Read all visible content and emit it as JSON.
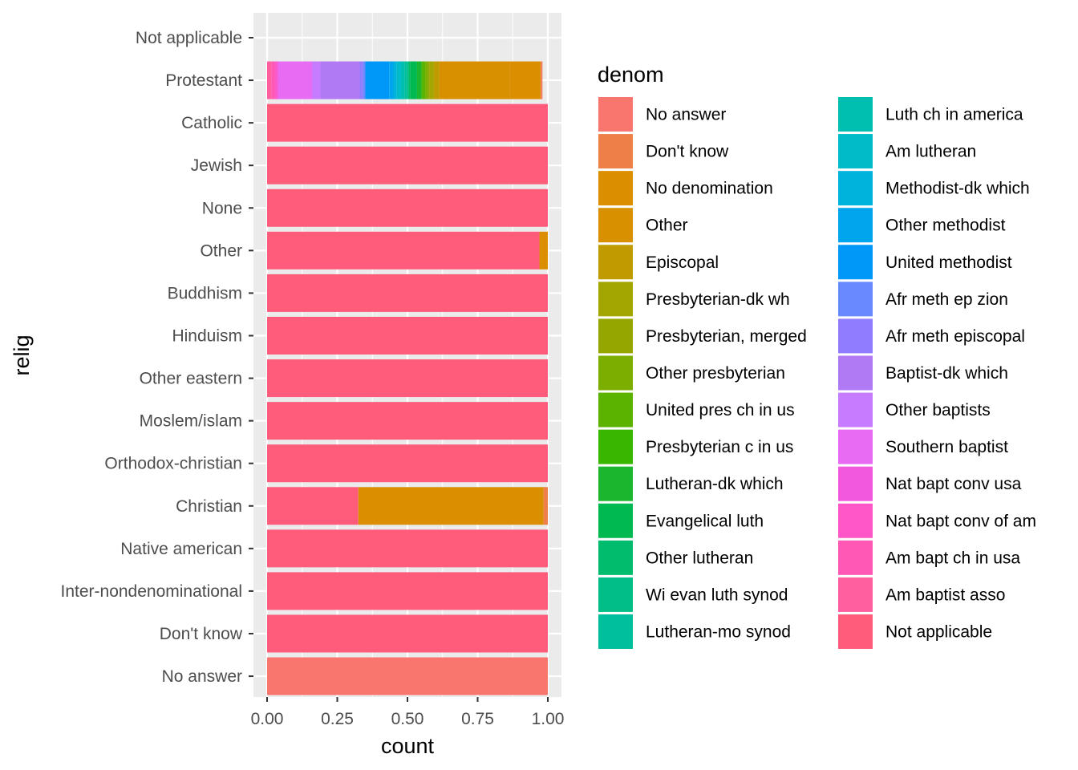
{
  "chart_data": {
    "type": "bar",
    "orientation": "horizontal",
    "stacked": "fill",
    "xlabel": "count",
    "ylabel": "relig",
    "xlim": [
      0,
      1
    ],
    "x_ticks": [
      "0.00",
      "0.25",
      "0.50",
      "0.75",
      "1.00"
    ],
    "grid": true,
    "legend_position": "right",
    "legend_title": "denom",
    "categories": [
      "Not applicable",
      "Protestant",
      "Catholic",
      "Jewish",
      "None",
      "Other",
      "Buddhism",
      "Hinduism",
      "Other eastern",
      "Moslem/islam",
      "Orthodox-christian",
      "Christian",
      "Native american",
      "Inter-nondenominational",
      "Don't know",
      "No answer"
    ],
    "legend": [
      {
        "name": "No answer",
        "color": "#F8766D"
      },
      {
        "name": "Don't know",
        "color": "#EF7F49"
      },
      {
        "name": "No denomination",
        "color": "#DB8E00"
      },
      {
        "name": "Other",
        "color": "#D89000"
      },
      {
        "name": "Episcopal",
        "color": "#C09B00"
      },
      {
        "name": "Presbyterian-dk wh",
        "color": "#A3A500"
      },
      {
        "name": "Presbyterian, merged",
        "color": "#96A600"
      },
      {
        "name": "Other presbyterian",
        "color": "#7CAE00"
      },
      {
        "name": "United pres ch in us",
        "color": "#5BB300"
      },
      {
        "name": "Presbyterian c in us",
        "color": "#39B600"
      },
      {
        "name": "Lutheran-dk which",
        "color": "#1CB52E"
      },
      {
        "name": "Evangelical luth",
        "color": "#00B950"
      },
      {
        "name": "Other lutheran",
        "color": "#00BC6C"
      },
      {
        "name": "Wi evan luth synod",
        "color": "#00BE85"
      },
      {
        "name": "Lutheran-mo synod",
        "color": "#00BF9C"
      },
      {
        "name": "Luth ch in america",
        "color": "#00BFB1"
      },
      {
        "name": "Am lutheran",
        "color": "#00BCC8"
      },
      {
        "name": "Methodist-dk which",
        "color": "#00B3DD"
      },
      {
        "name": "Other methodist",
        "color": "#00A5EE"
      },
      {
        "name": "United methodist",
        "color": "#0098F8"
      },
      {
        "name": "Afr meth ep zion",
        "color": "#6889FF"
      },
      {
        "name": "Afr meth episcopal",
        "color": "#8F7CFF"
      },
      {
        "name": "Baptist-dk which",
        "color": "#B07AF5"
      },
      {
        "name": "Other baptists",
        "color": "#C77CFF"
      },
      {
        "name": "Southern baptist",
        "color": "#E76BF3"
      },
      {
        "name": "Nat bapt conv usa",
        "color": "#F258DB"
      },
      {
        "name": "Nat bapt conv of am",
        "color": "#FF56C8"
      },
      {
        "name": "Am bapt ch in usa",
        "color": "#FF59B5"
      },
      {
        "name": "Am baptist asso",
        "color": "#FF5E9F"
      },
      {
        "name": "Not applicable",
        "color": "#FF5C7C"
      }
    ],
    "bars": [
      {
        "category": "Not applicable",
        "segments": []
      },
      {
        "category": "Protestant",
        "segments": [
          {
            "denom": "Not applicable",
            "value": 0.0
          },
          {
            "denom": "Am baptist asso",
            "value": 0.015
          },
          {
            "denom": "Am bapt ch in usa",
            "value": 0.012
          },
          {
            "denom": "Nat bapt conv of am",
            "value": 0.008
          },
          {
            "denom": "Nat bapt conv usa",
            "value": 0.005
          },
          {
            "denom": "Southern baptist",
            "value": 0.12
          },
          {
            "denom": "Other baptists",
            "value": 0.03
          },
          {
            "denom": "Baptist-dk which",
            "value": 0.14
          },
          {
            "denom": "Afr meth episcopal",
            "value": 0.012
          },
          {
            "denom": "Afr meth ep zion",
            "value": 0.008
          },
          {
            "denom": "United methodist",
            "value": 0.085
          },
          {
            "denom": "Other methodist",
            "value": 0.015
          },
          {
            "denom": "Methodist-dk which",
            "value": 0.012
          },
          {
            "denom": "Am lutheran",
            "value": 0.015
          },
          {
            "denom": "Luth ch in america",
            "value": 0.012
          },
          {
            "denom": "Lutheran-mo synod",
            "value": 0.01
          },
          {
            "denom": "Wi evan luth synod",
            "value": 0.005
          },
          {
            "denom": "Other lutheran",
            "value": 0.005
          },
          {
            "denom": "Evangelical luth",
            "value": 0.025
          },
          {
            "denom": "Lutheran-dk which",
            "value": 0.015
          },
          {
            "denom": "Presbyterian c in us",
            "value": 0.005
          },
          {
            "denom": "United pres ch in us",
            "value": 0.01
          },
          {
            "denom": "Other presbyterian",
            "value": 0.01
          },
          {
            "denom": "Presbyterian, merged",
            "value": 0.005
          },
          {
            "denom": "Presbyterian-dk wh",
            "value": 0.015
          },
          {
            "denom": "Episcopal",
            "value": 0.02
          },
          {
            "denom": "Other",
            "value": 0.25
          },
          {
            "denom": "No denomination",
            "value": 0.11
          },
          {
            "denom": "Don't know",
            "value": 0.005
          },
          {
            "denom": "No answer",
            "value": 0.002
          }
        ]
      },
      {
        "category": "Catholic",
        "segments": [
          {
            "denom": "Not applicable",
            "value": 1.0
          }
        ]
      },
      {
        "category": "Jewish",
        "segments": [
          {
            "denom": "Not applicable",
            "value": 1.0
          }
        ]
      },
      {
        "category": "None",
        "segments": [
          {
            "denom": "Not applicable",
            "value": 1.0
          }
        ]
      },
      {
        "category": "Other",
        "segments": [
          {
            "denom": "Not applicable",
            "value": 0.97
          },
          {
            "denom": "No denomination",
            "value": 0.03
          }
        ]
      },
      {
        "category": "Buddhism",
        "segments": [
          {
            "denom": "Not applicable",
            "value": 1.0
          }
        ]
      },
      {
        "category": "Hinduism",
        "segments": [
          {
            "denom": "Not applicable",
            "value": 1.0
          }
        ]
      },
      {
        "category": "Other eastern",
        "segments": [
          {
            "denom": "Not applicable",
            "value": 1.0
          }
        ]
      },
      {
        "category": "Moslem/islam",
        "segments": [
          {
            "denom": "Not applicable",
            "value": 1.0
          }
        ]
      },
      {
        "category": "Orthodox-christian",
        "segments": [
          {
            "denom": "Not applicable",
            "value": 1.0
          }
        ]
      },
      {
        "category": "Christian",
        "segments": [
          {
            "denom": "Not applicable",
            "value": 0.325
          },
          {
            "denom": "Other",
            "value": 0.0
          },
          {
            "denom": "No denomination",
            "value": 0.66
          },
          {
            "denom": "Don't know",
            "value": 0.015
          }
        ]
      },
      {
        "category": "Native american",
        "segments": [
          {
            "denom": "Not applicable",
            "value": 1.0
          }
        ]
      },
      {
        "category": "Inter-nondenominational",
        "segments": [
          {
            "denom": "Not applicable",
            "value": 1.0
          }
        ]
      },
      {
        "category": "Don't know",
        "segments": [
          {
            "denom": "Not applicable",
            "value": 1.0
          }
        ]
      },
      {
        "category": "No answer",
        "segments": [
          {
            "denom": "No answer",
            "value": 1.0
          }
        ]
      }
    ]
  }
}
